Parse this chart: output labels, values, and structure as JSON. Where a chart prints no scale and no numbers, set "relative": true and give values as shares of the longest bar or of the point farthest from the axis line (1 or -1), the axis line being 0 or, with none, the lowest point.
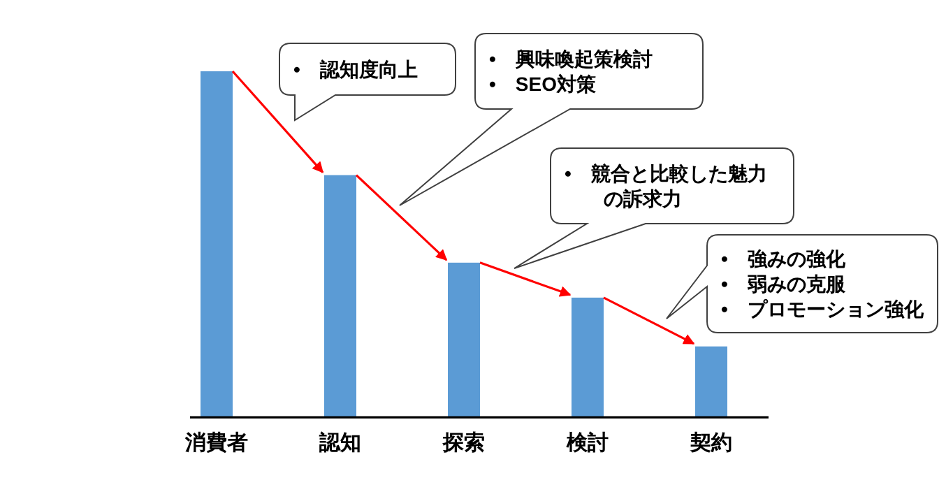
{
  "chart_data": {
    "type": "bar",
    "relative": true,
    "categories": [
      "消費者",
      "認知",
      "探索",
      "検討",
      "契約"
    ],
    "values": [
      1,
      0.7,
      0.447,
      0.346,
      0.205
    ],
    "color": "#5b9bd5",
    "annotations": [
      "• 認知度向上",
      "• 興味喚起策検討\n• SEO対策",
      "• 競合と比較した魅力の訴求力",
      "• 強みの強化\n• 弱みの克服\n• プロモーション強化"
    ]
  }
}
